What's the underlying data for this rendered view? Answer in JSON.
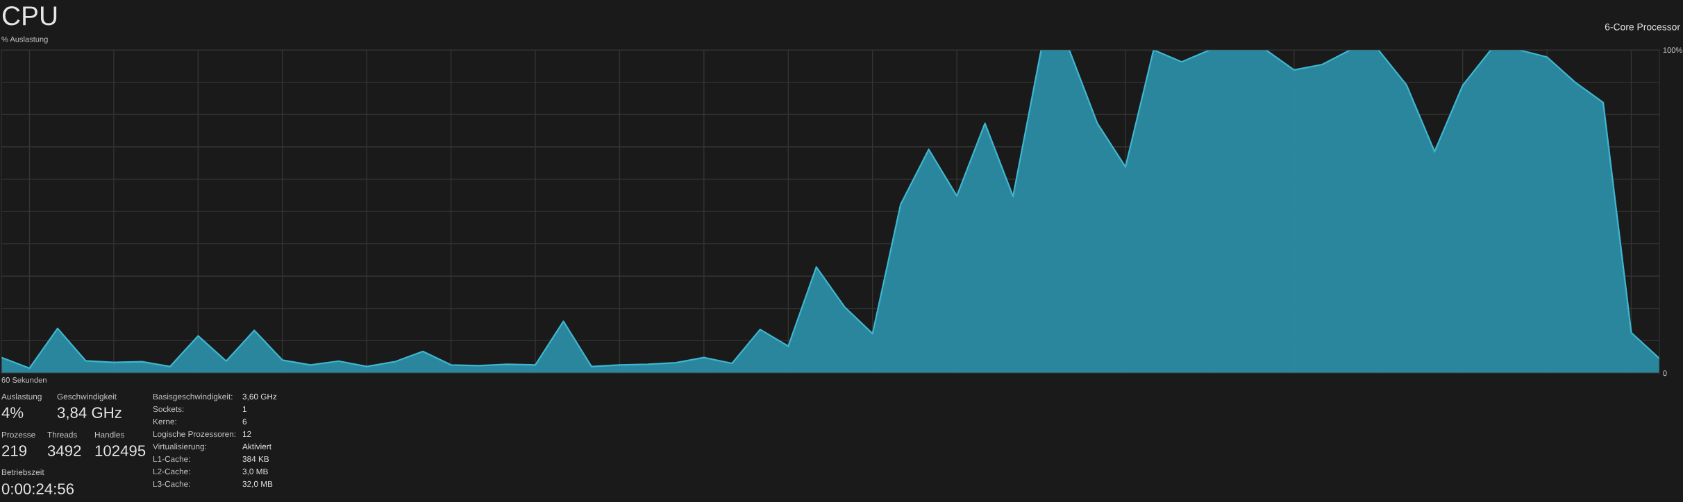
{
  "chart_data": {
    "type": "area",
    "title": "CPU",
    "subtitle": "6-Core Processor",
    "ylabel": "% Auslastung",
    "categories": [
      null,
      null,
      null,
      null,
      null,
      null,
      null,
      null,
      null,
      null,
      null,
      null,
      null,
      null,
      null,
      null,
      null,
      null,
      null,
      null,
      null,
      null,
      null,
      null,
      null,
      null,
      null,
      null,
      null,
      null,
      null,
      null,
      null,
      null,
      null,
      null,
      null,
      null,
      null,
      null,
      null,
      null,
      null,
      null,
      null,
      null,
      null,
      null,
      null,
      null,
      null,
      null,
      null,
      null,
      null,
      null,
      null,
      null,
      null,
      null
    ],
    "series": [
      {
        "color": "#2b8ca3",
        "values": [
          4.8,
          1.5,
          13.8,
          3.8,
          3.3,
          3.5,
          2.0,
          11.5,
          3.7,
          13.2,
          4.0,
          2.5,
          3.7,
          2.0,
          3.5,
          6.7,
          2.5,
          2.3,
          2.7,
          2.5,
          16.0,
          2.0,
          2.5,
          2.7,
          3.2,
          4.8,
          3.0,
          13.5,
          8.3,
          32.8,
          20.5,
          12.2,
          52.2,
          69.2,
          54.8,
          77.3,
          54.7,
          100,
          100,
          77.3,
          63.8,
          100,
          96.3,
          100,
          100,
          100,
          93.8,
          95.5,
          100,
          100,
          89.2,
          68.5,
          89.0,
          100,
          100,
          97.8,
          90,
          83.7,
          12.5,
          4.5
        ]
      }
    ],
    "ylim": [
      0,
      100
    ],
    "yticks": [
      {
        "value": 0,
        "label": "0"
      },
      {
        "value": 10,
        "label": null
      },
      {
        "value": 20,
        "label": null
      },
      {
        "value": 30,
        "label": null
      },
      {
        "value": 40,
        "label": null
      },
      {
        "value": 50,
        "label": null
      },
      {
        "value": 60,
        "label": null
      },
      {
        "value": 70,
        "label": null
      },
      {
        "value": 80,
        "label": null
      },
      {
        "value": 90,
        "label": null
      },
      {
        "value": 100,
        "label": "100%"
      }
    ],
    "grid": true,
    "annotations": [
      "60 Sekunden",
      "Auslastung",
      "4%",
      "Geschwindigkeit",
      "3,84 GHz",
      "Prozesse",
      "219",
      "Threads",
      "3492",
      "Handles",
      "102495",
      "Betriebszeit",
      "0:00:24:56",
      "Basisgeschwindigkeit:",
      "3,60 GHz",
      "Sockets:",
      "1",
      "Kerne:",
      "6",
      "Logische Prozessoren:",
      "12",
      "Virtualisierung:",
      "Aktiviert",
      "L1-Cache:",
      "384 KB",
      "L2-Cache:",
      "3,0 MB",
      "L3-Cache:",
      "32,0 MB"
    ]
  }
}
